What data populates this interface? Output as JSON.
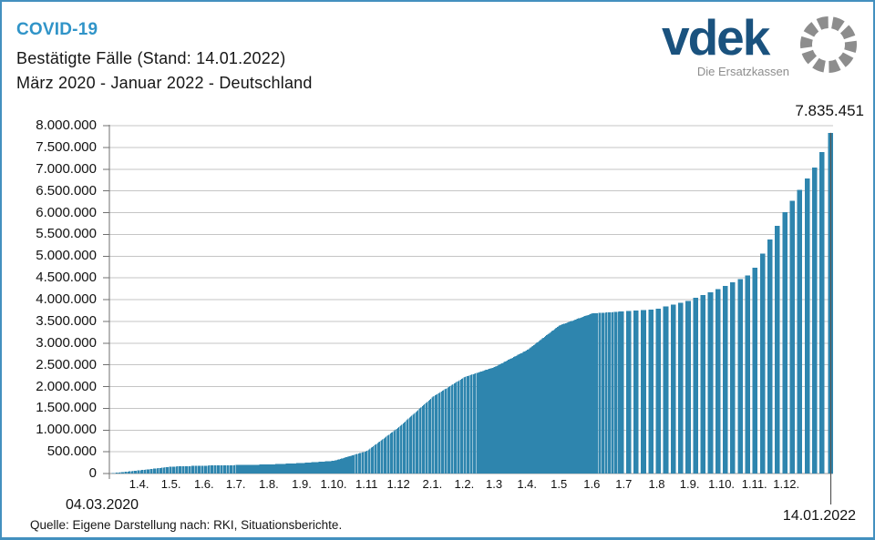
{
  "header": {
    "brand": "COVID-19",
    "subtitle_line1": "Bestätigte Fälle (Stand: 14.01.2022)",
    "subtitle_line2": "März 2020 - Januar 2022 - Deutschland"
  },
  "logo": {
    "wordmark": "vdek",
    "tagline": "Die Ersatzkassen"
  },
  "annotations": {
    "final_value": "7.835.451",
    "start_date": "04.03.2020",
    "end_date": "14.01.2022"
  },
  "source": "Quelle: Eigene Darstellung nach: RKI, Situationsberichte.",
  "colors": {
    "bar": "#2e85ae",
    "title_accent": "#3094c8",
    "logo_blue": "#1a527e",
    "logo_gray": "#8d8d8d",
    "frame_blue": "#4390bf",
    "grid": "#c5c5c5",
    "baseline": "#9a9a9a",
    "axis": "#707070",
    "leader_line": "#555555"
  },
  "chart_data": {
    "type": "bar",
    "title": "COVID-19 Bestätigte Fälle (Stand: 14.01.2022)",
    "subtitle": "März 2020 - Januar 2022 - Deutschland",
    "xlabel": "",
    "ylabel": "",
    "ylim": [
      0,
      8000000
    ],
    "ytick_step": 500000,
    "ytick_labels": [
      "0",
      "500.000",
      "1.000.000",
      "1.500.000",
      "2.000.000",
      "2.500.000",
      "3.000.000",
      "3.500.000",
      "4.000.000",
      "4.500.000",
      "5.000.000",
      "5.500.000",
      "6.000.000",
      "6.500.000",
      "7.000.000",
      "7.500.000",
      "8.000.000"
    ],
    "grid": true,
    "legend": false,
    "cadence": "daily bars 04.03.2020 - 30.06.2021, weekly bars from 01.07.2021 (RKI Situationsberichte)",
    "start": {
      "date": "2020-03-04",
      "label": "04.03.2020",
      "value": 262
    },
    "end": {
      "date": "2022-01-14",
      "label": "14.01.2022",
      "value": 7835451,
      "value_label": "7.835.451"
    },
    "xticks": [
      {
        "label": "1.4.",
        "date": "2020-04-01"
      },
      {
        "label": "1.5.",
        "date": "2020-05-01"
      },
      {
        "label": "1.6.",
        "date": "2020-06-01"
      },
      {
        "label": "1.7.",
        "date": "2020-07-01"
      },
      {
        "label": "1.8.",
        "date": "2020-08-01"
      },
      {
        "label": "1.9.",
        "date": "2020-09-01"
      },
      {
        "label": "1.10.",
        "date": "2020-10-01"
      },
      {
        "label": "1.11",
        "date": "2020-11-01"
      },
      {
        "label": "1.12",
        "date": "2020-12-01"
      },
      {
        "label": "2.1.",
        "date": "2021-01-02"
      },
      {
        "label": "1.2.",
        "date": "2021-02-01"
      },
      {
        "label": "1.3",
        "date": "2021-03-01"
      },
      {
        "label": "1.4.",
        "date": "2021-04-01"
      },
      {
        "label": "1.5",
        "date": "2021-05-01"
      },
      {
        "label": "1.6",
        "date": "2021-06-01"
      },
      {
        "label": "1.7",
        "date": "2021-07-01"
      },
      {
        "label": "1.8",
        "date": "2021-08-01"
      },
      {
        "label": "1.9.",
        "date": "2021-09-01"
      },
      {
        "label": "1.10.",
        "date": "2021-10-01"
      },
      {
        "label": "1.11.",
        "date": "2021-11-01"
      },
      {
        "label": "1.12.",
        "date": "2021-12-01"
      }
    ],
    "anchors": [
      {
        "date": "2020-03-04",
        "value": 262
      },
      {
        "date": "2020-04-01",
        "value": 73500
      },
      {
        "date": "2020-05-01",
        "value": 159100
      },
      {
        "date": "2020-06-01",
        "value": 181800
      },
      {
        "date": "2020-07-01",
        "value": 194250
      },
      {
        "date": "2020-08-01",
        "value": 208700
      },
      {
        "date": "2020-09-01",
        "value": 242100
      },
      {
        "date": "2020-10-01",
        "value": 291700
      },
      {
        "date": "2020-11-01",
        "value": 518750
      },
      {
        "date": "2020-12-01",
        "value": 1067450
      },
      {
        "date": "2021-01-02",
        "value": 1765650
      },
      {
        "date": "2021-02-01",
        "value": 2222000
      },
      {
        "date": "2021-03-01",
        "value": 2447050
      },
      {
        "date": "2021-04-01",
        "value": 2843650
      },
      {
        "date": "2021-05-01",
        "value": 3405350
      },
      {
        "date": "2021-06-01",
        "value": 3682900
      },
      {
        "date": "2021-07-01",
        "value": 3727850
      },
      {
        "date": "2021-08-01",
        "value": 3770250
      },
      {
        "date": "2021-09-01",
        "value": 3961450
      },
      {
        "date": "2021-10-01",
        "value": 4249050
      },
      {
        "date": "2021-11-01",
        "value": 4598500
      },
      {
        "date": "2021-12-01",
        "value": 5977200
      },
      {
        "date": "2022-01-01",
        "value": 7109150
      },
      {
        "date": "2022-01-14",
        "value": 7835451
      }
    ]
  }
}
